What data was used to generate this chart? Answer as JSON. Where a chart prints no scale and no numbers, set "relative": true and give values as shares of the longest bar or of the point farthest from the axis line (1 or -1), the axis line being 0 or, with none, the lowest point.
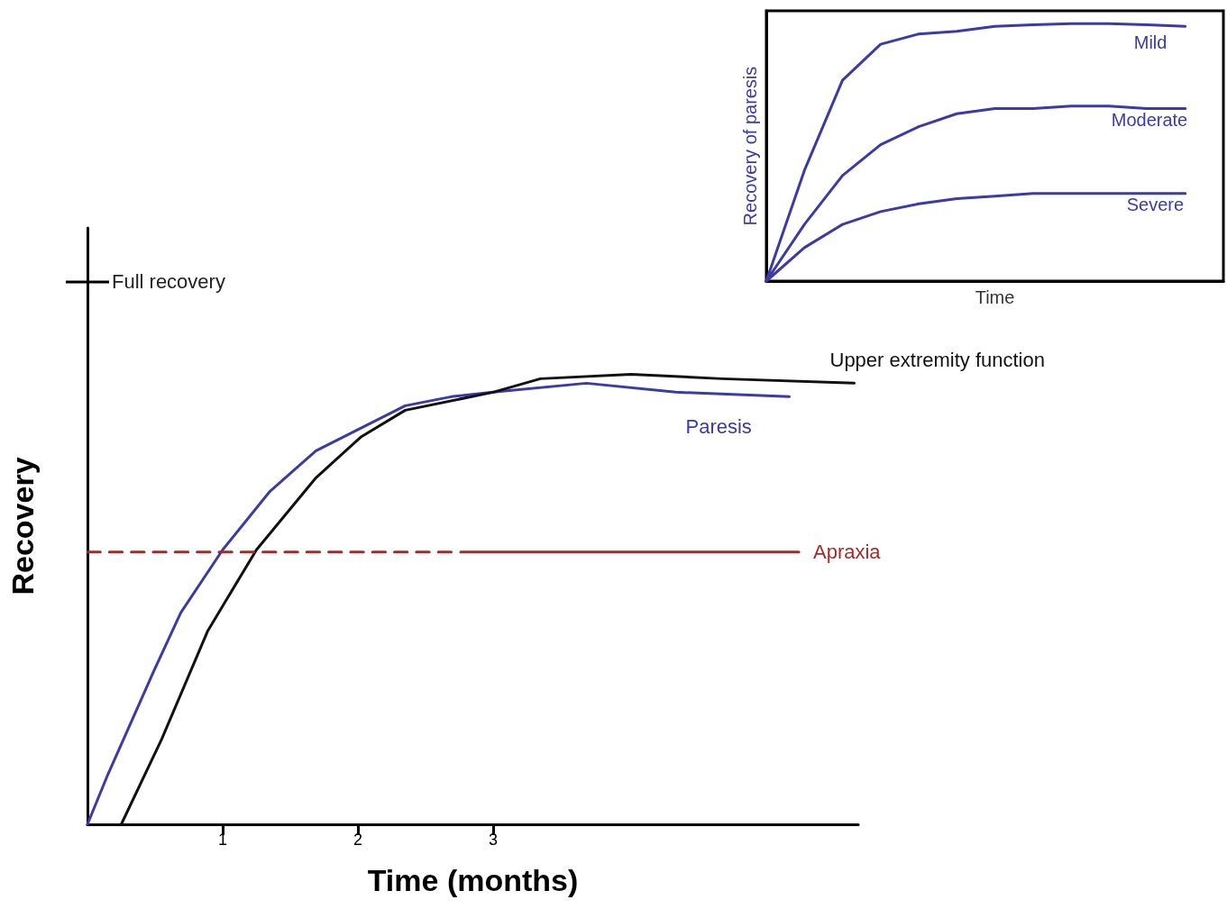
{
  "chart_data": [
    {
      "type": "line",
      "relative": true,
      "xlabel": "Time (months)",
      "ylabel": "Recovery",
      "xlim": [
        0,
        5.7
      ],
      "xticks": [
        1,
        2,
        3
      ],
      "annotations": [
        "Full recovery"
      ],
      "grid": false,
      "series": [
        {
          "name": "Paresis",
          "color": "#3a3aa8",
          "x": [
            0,
            0.15,
            0.49,
            0.69,
            1,
            1.35,
            1.69,
            2.02,
            2.35,
            2.69,
            3,
            3.69,
            4.35,
            5.19
          ],
          "values": [
            0,
            0.11,
            0.34,
            0.47,
            0.61,
            0.74,
            0.83,
            0.88,
            0.93,
            0.95,
            0.96,
            0.98,
            0.96,
            0.95
          ]
        },
        {
          "name": "Upper extremity function",
          "color": "#111111",
          "x": [
            0.25,
            0.55,
            0.89,
            1.25,
            1.69,
            2.02,
            2.35,
            3,
            3.35,
            4.02,
            4.69,
            5.67
          ],
          "values": [
            0,
            0.19,
            0.43,
            0.61,
            0.77,
            0.86,
            0.92,
            0.96,
            0.99,
            1,
            0.99,
            0.98
          ]
        },
        {
          "color": "#a52a2a",
          "line_style": "dashed",
          "x": [
            0,
            2.69
          ],
          "values": [
            0.605,
            0.605
          ]
        },
        {
          "name": "Apraxia",
          "color": "#a52a2a",
          "line_style": "solid",
          "x": [
            2.76,
            5.26
          ],
          "values": [
            0.605,
            0.605
          ]
        }
      ]
    },
    {
      "type": "line",
      "relative": true,
      "xlabel": "Time",
      "ylabel": "Recovery of paresis",
      "tick_labels": false,
      "grid": false,
      "categories": [
        null,
        null,
        null,
        null,
        null,
        null,
        null,
        null,
        null,
        null,
        null,
        null,
        null
      ],
      "series": [
        {
          "name": "Mild",
          "color": "#3a3aa8",
          "values": [
            0,
            0.43,
            0.78,
            0.92,
            0.96,
            0.97,
            0.99,
            0.996,
            1,
            1,
            0.996,
            0.99,
            null
          ]
        },
        {
          "name": "Moderate",
          "color": "#3a3aa8",
          "values": [
            0,
            0.22,
            0.41,
            0.53,
            0.6,
            0.65,
            0.67,
            0.67,
            0.68,
            0.68,
            0.67,
            0.67,
            null
          ]
        },
        {
          "name": "Severe",
          "color": "#3a3aa8",
          "values": [
            0,
            0.13,
            0.22,
            0.27,
            0.3,
            0.32,
            0.33,
            0.34,
            0.34,
            0.34,
            0.34,
            0.34,
            null
          ]
        }
      ]
    }
  ]
}
